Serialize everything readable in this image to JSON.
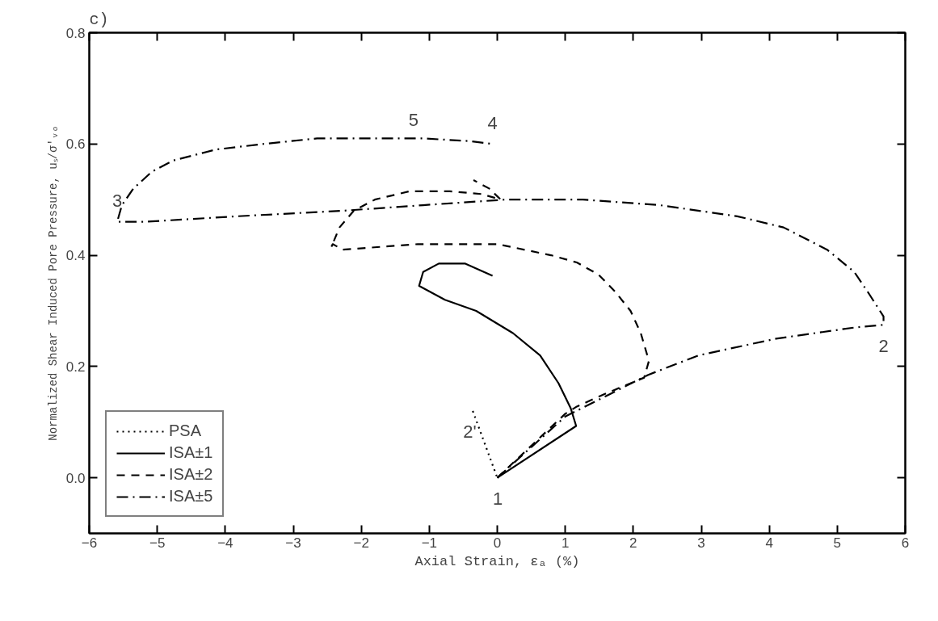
{
  "chart_data": {
    "type": "line",
    "xlabel": "Axial Strain, εₐ (%)",
    "ylabel": "Normalized Shear Induced Pore Pressure, uₛ/σ'ᵥₒ",
    "xlim": [
      -6,
      6
    ],
    "ylim": [
      -0.1,
      0.8
    ],
    "xticks": [
      -6,
      -5,
      -4,
      -3,
      -2,
      -1,
      0,
      1,
      2,
      3,
      4,
      5,
      6
    ],
    "yticks": [
      {
        "value": 0,
        "label": "0.0"
      },
      {
        "value": 0.2,
        "label": "0.2"
      },
      {
        "value": 0.4,
        "label": "0.4"
      },
      {
        "value": 0.6,
        "label": "0.6"
      },
      {
        "value": 0.8,
        "label": "0.8"
      }
    ],
    "grid": false,
    "legend": "bottom left",
    "marker": "none",
    "annotations": [
      "c)",
      {
        "text": "1",
        "x": 0.0,
        "y": 0.0
      },
      {
        "text": "2'",
        "x": -0.36,
        "y": 0.12
      },
      {
        "text": "2",
        "x": 5.68,
        "y": 0.275
      },
      {
        "text": "3",
        "x": -5.59,
        "y": 0.46
      },
      {
        "text": "4",
        "x": -0.07,
        "y": 0.6
      },
      {
        "text": "5",
        "x": -1.09,
        "y": 0.61
      }
    ],
    "series": [
      {
        "name": "PSA",
        "color": "#000000",
        "line_style": "dotted",
        "x": [
          -0.36,
          0.0
        ],
        "values": [
          0.12,
          0.0
        ]
      },
      {
        "name": "ISA±1",
        "color": "#000000",
        "line_style": "solid",
        "x": [
          0.0,
          1.16,
          1.08,
          0.9,
          0.63,
          0.23,
          -0.31,
          -0.77,
          -1.15,
          -1.09,
          -0.86,
          -0.47,
          -0.07
        ],
        "values": [
          0.0,
          0.093,
          0.125,
          0.17,
          0.22,
          0.26,
          0.3,
          0.32,
          0.345,
          0.37,
          0.385,
          0.385,
          0.363
        ]
      },
      {
        "name": "ISA±2",
        "color": "#000000",
        "line_style": "dashed",
        "x": [
          0.0,
          1.0,
          1.17,
          1.57,
          2.16,
          2.23,
          2.11,
          1.96,
          1.73,
          1.49,
          1.17,
          0.79,
          0.0,
          -1.17,
          -2.27,
          -2.42,
          -2.44,
          -2.32,
          -2.11,
          -1.8,
          -1.29,
          -0.7,
          -0.23,
          0.05,
          -0.12,
          -0.35
        ],
        "values": [
          0.0,
          0.115,
          0.128,
          0.15,
          0.18,
          0.21,
          0.26,
          0.3,
          0.335,
          0.365,
          0.387,
          0.4,
          0.42,
          0.42,
          0.41,
          0.42,
          0.415,
          0.45,
          0.48,
          0.5,
          0.515,
          0.515,
          0.51,
          0.5,
          0.52,
          0.535
        ]
      },
      {
        "name": "ISA±5",
        "color": "#000000",
        "line_style": "dashdot",
        "x": [
          0.0,
          1.0,
          2.22,
          2.96,
          4.1,
          5.25,
          5.68,
          5.68,
          5.47,
          5.25,
          4.85,
          4.21,
          3.53,
          2.39,
          1.26,
          0.12,
          -1.09,
          -2.27,
          -3.83,
          -5.2,
          -5.43,
          -5.59,
          -5.52,
          -5.35,
          -5.08,
          -4.77,
          -4.14,
          -3.44,
          -2.65,
          -1.88,
          -1.09,
          -0.39,
          -0.07
        ],
        "values": [
          0.0,
          0.11,
          0.185,
          0.22,
          0.25,
          0.27,
          0.275,
          0.29,
          0.33,
          0.37,
          0.41,
          0.45,
          0.47,
          0.49,
          0.5,
          0.5,
          0.49,
          0.48,
          0.47,
          0.46,
          0.46,
          0.46,
          0.49,
          0.52,
          0.55,
          0.57,
          0.59,
          0.6,
          0.61,
          0.61,
          0.61,
          0.605,
          0.6
        ]
      }
    ]
  }
}
